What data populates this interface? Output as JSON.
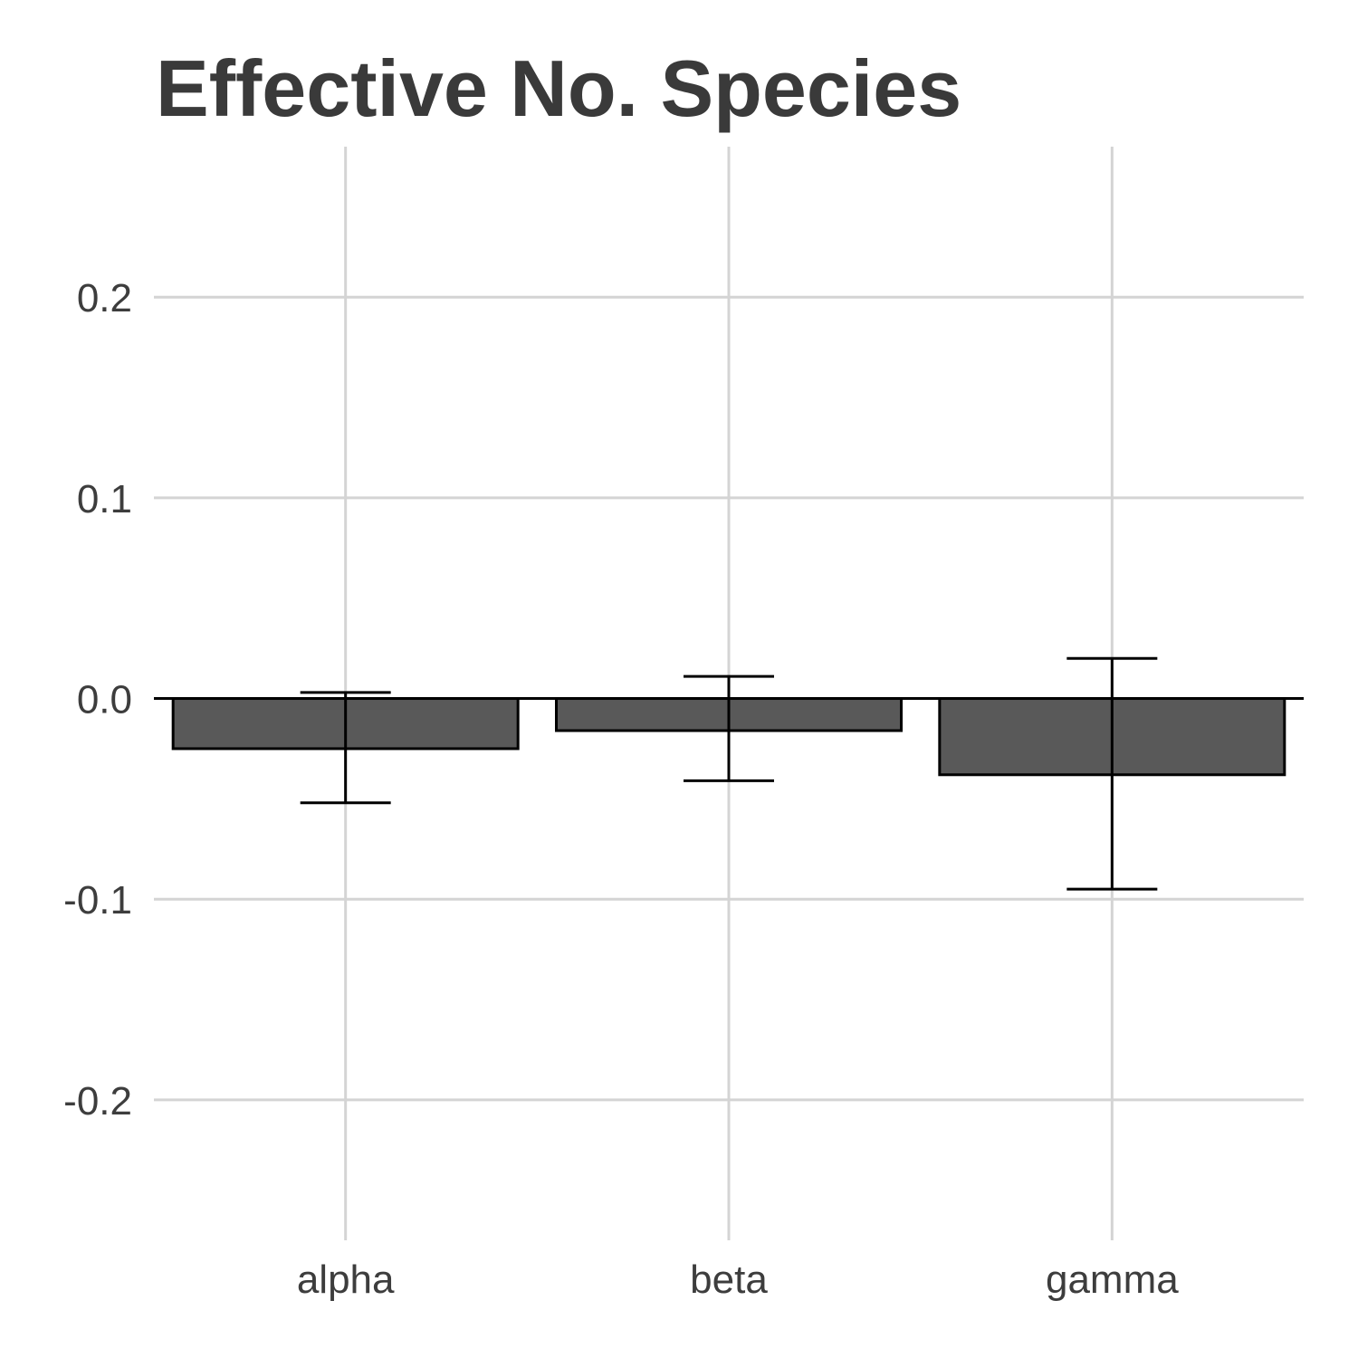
{
  "chart_data": {
    "type": "bar",
    "title": "Effective No. Species",
    "xlabel": "",
    "ylabel": "",
    "categories": [
      "alpha",
      "beta",
      "gamma"
    ],
    "values": [
      -0.025,
      -0.016,
      -0.038
    ],
    "error_low": [
      -0.052,
      -0.041,
      -0.095
    ],
    "error_high": [
      0.003,
      0.011,
      0.02
    ],
    "ylim": [
      -0.27,
      0.275
    ],
    "yticks": [
      0.2,
      0.1,
      0.0,
      -0.1,
      -0.2
    ],
    "ytick_labels": [
      "0.2",
      "0.1",
      "0.0",
      "-0.1",
      "-0.2"
    ],
    "grid": true,
    "bar_color": "#595959",
    "zero_line": true
  }
}
